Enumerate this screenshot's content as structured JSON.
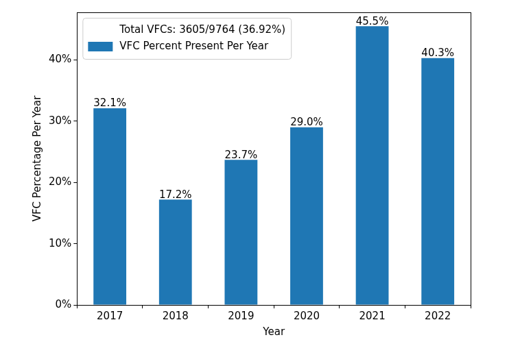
{
  "chart_data": {
    "type": "bar",
    "x_label": "Year",
    "y_label": "VFC Percentage Per Year",
    "categories": [
      "2017",
      "2018",
      "2019",
      "2020",
      "2021",
      "2022"
    ],
    "series": [
      {
        "name": "VFC Percent Present Per Year",
        "color": "#1f77b4",
        "values": [
          32.1,
          17.2,
          23.7,
          29.0,
          45.5,
          40.3
        ],
        "value_labels": [
          "32.1%",
          "17.2%",
          "23.7%",
          "29.0%",
          "45.5%",
          "40.3%"
        ]
      }
    ],
    "annotations": [
      "Total VFCs: 3605/9764 (36.92%)"
    ],
    "ylim": [
      0,
      47.775
    ],
    "yticks": [
      {
        "value": 0,
        "label": "0%"
      },
      {
        "value": 10,
        "label": "10%"
      },
      {
        "value": 20,
        "label": "20%"
      },
      {
        "value": 30,
        "label": "30%"
      },
      {
        "value": 40,
        "label": "40%"
      }
    ],
    "grid": false,
    "legend": "upper left",
    "data_labels": true
  }
}
